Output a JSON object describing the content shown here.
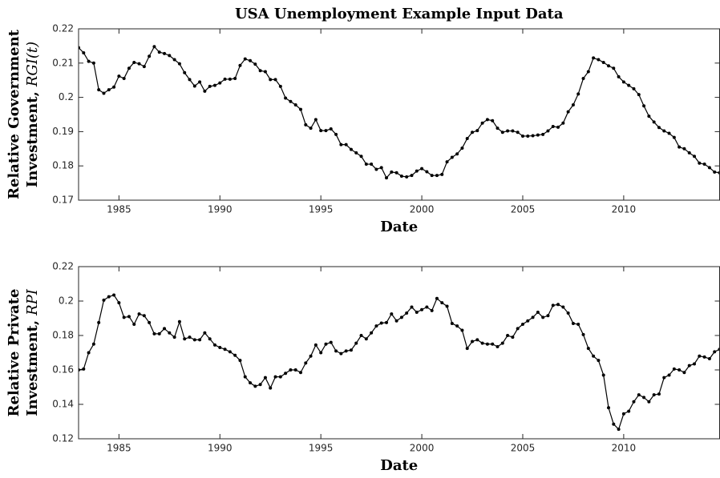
{
  "chart_data": [
    {
      "type": "line",
      "title": "USA Unemployment Example Input Data",
      "xlabel": "Date",
      "ylabel": {
        "line1": "Relative Government",
        "line2": "Investment,",
        "symbol": "RGI(t)"
      },
      "color": "#000000",
      "marker": true,
      "xlim": [
        1983,
        2014.75
      ],
      "xticks": [
        1985,
        1990,
        1995,
        2000,
        2005,
        2010
      ],
      "ylim": [
        0.17,
        0.22
      ],
      "yticks": [
        0.17,
        0.18,
        0.19,
        0.2,
        0.21,
        0.22
      ],
      "x": [
        1983,
        1983.25,
        1983.5,
        1983.75,
        1984,
        1984.25,
        1984.5,
        1984.75,
        1985,
        1985.25,
        1985.5,
        1985.75,
        1986,
        1986.25,
        1986.5,
        1986.75,
        1987,
        1987.25,
        1987.5,
        1987.75,
        1988,
        1988.25,
        1988.5,
        1988.75,
        1989,
        1989.25,
        1989.5,
        1989.75,
        1990,
        1990.25,
        1990.5,
        1990.75,
        1991,
        1991.25,
        1991.5,
        1991.75,
        1992,
        1992.25,
        1992.5,
        1992.75,
        1993,
        1993.25,
        1993.5,
        1993.75,
        1994,
        1994.25,
        1994.5,
        1994.75,
        1995,
        1995.25,
        1995.5,
        1995.75,
        1996,
        1996.25,
        1996.5,
        1996.75,
        1997,
        1997.25,
        1997.5,
        1997.75,
        1998,
        1998.25,
        1998.5,
        1998.75,
        1999,
        1999.25,
        1999.5,
        1999.75,
        2000,
        2000.25,
        2000.5,
        2000.75,
        2001,
        2001.25,
        2001.5,
        2001.75,
        2002,
        2002.25,
        2002.5,
        2002.75,
        2003,
        2003.25,
        2003.5,
        2003.75,
        2004,
        2004.25,
        2004.5,
        2004.75,
        2005,
        2005.25,
        2005.5,
        2005.75,
        2006,
        2006.25,
        2006.5,
        2006.75,
        2007,
        2007.25,
        2007.5,
        2007.75,
        2008,
        2008.25,
        2008.5,
        2008.75,
        2009,
        2009.25,
        2009.5,
        2009.75,
        2010,
        2010.25,
        2010.5,
        2010.75,
        2011,
        2011.25,
        2011.5,
        2011.75,
        2012,
        2012.25,
        2012.5,
        2012.75,
        2013,
        2013.25,
        2013.5,
        2013.75,
        2014,
        2014.25,
        2014.5,
        2014.75
      ],
      "values": [
        0.2145,
        0.213,
        0.2105,
        0.21,
        0.2022,
        0.2012,
        0.2022,
        0.203,
        0.2062,
        0.2055,
        0.2085,
        0.2102,
        0.2098,
        0.209,
        0.212,
        0.2148,
        0.2132,
        0.2128,
        0.2122,
        0.211,
        0.2098,
        0.2072,
        0.2052,
        0.2033,
        0.2045,
        0.2018,
        0.2032,
        0.2035,
        0.2042,
        0.2053,
        0.2053,
        0.2055,
        0.2093,
        0.2112,
        0.2107,
        0.2097,
        0.2078,
        0.2075,
        0.2052,
        0.2052,
        0.2032,
        0.1998,
        0.1988,
        0.1978,
        0.1965,
        0.192,
        0.191,
        0.1935,
        0.1903,
        0.1903,
        0.1908,
        0.1892,
        0.1862,
        0.1862,
        0.1848,
        0.1838,
        0.1828,
        0.1805,
        0.1805,
        0.179,
        0.1795,
        0.1765,
        0.1782,
        0.178,
        0.177,
        0.1768,
        0.1772,
        0.1785,
        0.1792,
        0.1783,
        0.1772,
        0.1772,
        0.1775,
        0.1812,
        0.1825,
        0.1835,
        0.1852,
        0.188,
        0.1898,
        0.1903,
        0.1925,
        0.1935,
        0.1932,
        0.191,
        0.1898,
        0.1902,
        0.1902,
        0.1898,
        0.1887,
        0.1887,
        0.1888,
        0.189,
        0.1892,
        0.1902,
        0.1915,
        0.1913,
        0.1925,
        0.1958,
        0.1978,
        0.201,
        0.2055,
        0.2075,
        0.2115,
        0.211,
        0.2102,
        0.2092,
        0.2085,
        0.206,
        0.2045,
        0.2035,
        0.2025,
        0.2008,
        0.1975,
        0.1945,
        0.1928,
        0.1912,
        0.1902,
        0.1895,
        0.1883,
        0.1855,
        0.185,
        0.1838,
        0.1828,
        0.1808,
        0.1805,
        0.1795,
        0.1782,
        0.178
      ]
    },
    {
      "type": "line",
      "xlabel": "Date",
      "ylabel": {
        "line1": "Relative Private",
        "line2": "Investment,",
        "symbol": "RPI"
      },
      "color": "#000000",
      "marker": true,
      "xlim": [
        1983,
        2014.75
      ],
      "xticks": [
        1985,
        1990,
        1995,
        2000,
        2005,
        2010
      ],
      "ylim": [
        0.12,
        0.22
      ],
      "yticks": [
        0.12,
        0.14,
        0.16,
        0.18,
        0.2,
        0.22
      ],
      "x": [
        1983,
        1983.25,
        1983.5,
        1983.75,
        1984,
        1984.25,
        1984.5,
        1984.75,
        1985,
        1985.25,
        1985.5,
        1985.75,
        1986,
        1986.25,
        1986.5,
        1986.75,
        1987,
        1987.25,
        1987.5,
        1987.75,
        1988,
        1988.25,
        1988.5,
        1988.75,
        1989,
        1989.25,
        1989.5,
        1989.75,
        1990,
        1990.25,
        1990.5,
        1990.75,
        1991,
        1991.25,
        1991.5,
        1991.75,
        1992,
        1992.25,
        1992.5,
        1992.75,
        1993,
        1993.25,
        1993.5,
        1993.75,
        1994,
        1994.25,
        1994.5,
        1994.75,
        1995,
        1995.25,
        1995.5,
        1995.75,
        1996,
        1996.25,
        1996.5,
        1996.75,
        1997,
        1997.25,
        1997.5,
        1997.75,
        1998,
        1998.25,
        1998.5,
        1998.75,
        1999,
        1999.25,
        1999.5,
        1999.75,
        2000,
        2000.25,
        2000.5,
        2000.75,
        2001,
        2001.25,
        2001.5,
        2001.75,
        2002,
        2002.25,
        2002.5,
        2002.75,
        2003,
        2003.25,
        2003.5,
        2003.75,
        2004,
        2004.25,
        2004.5,
        2004.75,
        2005,
        2005.25,
        2005.5,
        2005.75,
        2006,
        2006.25,
        2006.5,
        2006.75,
        2007,
        2007.25,
        2007.5,
        2007.75,
        2008,
        2008.25,
        2008.5,
        2008.75,
        2009,
        2009.25,
        2009.5,
        2009.75,
        2010,
        2010.25,
        2010.5,
        2010.75,
        2011,
        2011.25,
        2011.5,
        2011.75,
        2012,
        2012.25,
        2012.5,
        2012.75,
        2013,
        2013.25,
        2013.5,
        2013.75,
        2014,
        2014.25,
        2014.5,
        2014.75
      ],
      "values": [
        0.16,
        0.1605,
        0.17,
        0.175,
        0.1875,
        0.2005,
        0.2025,
        0.2035,
        0.199,
        0.1905,
        0.191,
        0.1865,
        0.1925,
        0.1915,
        0.1875,
        0.181,
        0.181,
        0.184,
        0.1815,
        0.179,
        0.188,
        0.178,
        0.179,
        0.1775,
        0.1775,
        0.1815,
        0.178,
        0.1745,
        0.173,
        0.172,
        0.1705,
        0.1685,
        0.1655,
        0.156,
        0.1525,
        0.1505,
        0.1515,
        0.1555,
        0.1495,
        0.156,
        0.156,
        0.158,
        0.16,
        0.16,
        0.1585,
        0.164,
        0.168,
        0.1745,
        0.17,
        0.175,
        0.176,
        0.171,
        0.1695,
        0.171,
        0.1715,
        0.1755,
        0.18,
        0.178,
        0.1815,
        0.1855,
        0.1872,
        0.1875,
        0.1925,
        0.1885,
        0.1905,
        0.193,
        0.1965,
        0.1935,
        0.195,
        0.1965,
        0.1945,
        0.2015,
        0.199,
        0.197,
        0.187,
        0.1855,
        0.183,
        0.1725,
        0.1765,
        0.1775,
        0.1755,
        0.175,
        0.175,
        0.1735,
        0.1755,
        0.18,
        0.179,
        0.184,
        0.1865,
        0.1885,
        0.1905,
        0.1935,
        0.1905,
        0.1915,
        0.1975,
        0.198,
        0.1965,
        0.193,
        0.187,
        0.1865,
        0.1805,
        0.1725,
        0.168,
        0.1655,
        0.157,
        0.138,
        0.1285,
        0.1255,
        0.1345,
        0.136,
        0.1415,
        0.1455,
        0.144,
        0.1415,
        0.1455,
        0.146,
        0.1555,
        0.157,
        0.1605,
        0.16,
        0.1585,
        0.1625,
        0.1635,
        0.168,
        0.1675,
        0.1665,
        0.1705,
        0.172
      ]
    }
  ]
}
